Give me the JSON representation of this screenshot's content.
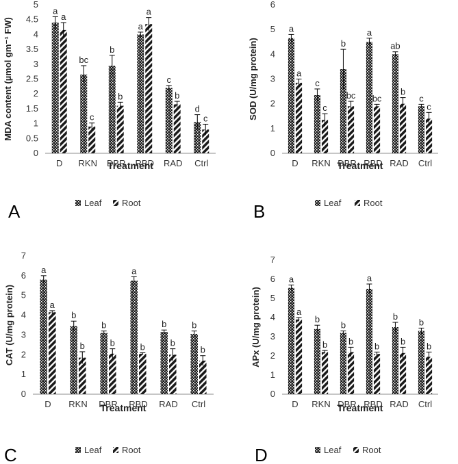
{
  "colors": {
    "bar": "#1a1a1a",
    "axis": "#8c8c8c",
    "text": "#222222"
  },
  "chart_data": [
    {
      "panel": "A",
      "type": "bar",
      "ylabel": "MDA content (µmol gm⁻¹ FW)",
      "xlabel": "Treatment",
      "ylim": [
        0,
        5
      ],
      "yticks": [
        "0",
        "0.5",
        "1",
        "1.5",
        "2",
        "2.5",
        "3",
        "3.5",
        "4",
        "4.5",
        "5"
      ],
      "categories": [
        "D",
        "RKN",
        "DBR",
        "RBD",
        "RAD",
        "Ctrl"
      ],
      "series": [
        {
          "name": "Leaf",
          "values": [
            4.4,
            2.65,
            2.95,
            4.0,
            2.2,
            1.05
          ],
          "errors": [
            0.2,
            0.3,
            0.35,
            0.08,
            0.08,
            0.25
          ],
          "letters": [
            "a",
            "bc",
            "b",
            "a",
            "c",
            "d"
          ]
        },
        {
          "name": "Root",
          "values": [
            4.15,
            0.9,
            1.6,
            4.35,
            1.65,
            0.8
          ],
          "errors": [
            0.25,
            0.12,
            0.12,
            0.22,
            0.1,
            0.18
          ],
          "letters": [
            "a",
            "c",
            "b",
            "a",
            "b",
            "c"
          ]
        }
      ]
    },
    {
      "panel": "B",
      "type": "bar",
      "ylabel": "SOD (U/mg protein)",
      "xlabel": "Treatment",
      "ylim": [
        0,
        6
      ],
      "yticks": [
        "0",
        "1",
        "2",
        "3",
        "4",
        "5",
        "6"
      ],
      "categories": [
        "D",
        "RKN",
        "DBR",
        "RBD",
        "RAD",
        "Ctrl"
      ],
      "series": [
        {
          "name": "Leaf",
          "values": [
            4.65,
            2.35,
            3.4,
            4.5,
            4.0,
            1.9
          ],
          "errors": [
            0.15,
            0.25,
            0.8,
            0.15,
            0.1,
            0.08
          ],
          "letters": [
            "a",
            "c",
            "b",
            "a",
            "ab",
            "c"
          ]
        },
        {
          "name": "Root",
          "values": [
            2.85,
            1.35,
            1.9,
            1.9,
            2.0,
            1.4
          ],
          "errors": [
            0.15,
            0.25,
            0.2,
            0.08,
            0.25,
            0.25
          ],
          "letters": [
            "a",
            "c",
            "bc",
            "bc",
            "b",
            "c"
          ]
        }
      ]
    },
    {
      "panel": "C",
      "type": "bar",
      "ylabel": "CAT (U/mg protein)",
      "xlabel": "Treatment",
      "ylim": [
        0,
        7
      ],
      "yticks": [
        "0",
        "1",
        "2",
        "3",
        "4",
        "5",
        "6",
        "7"
      ],
      "categories": [
        "D",
        "RKN",
        "DBR",
        "RBD",
        "RAD",
        "Ctrl"
      ],
      "series": [
        {
          "name": "Leaf",
          "values": [
            5.8,
            3.45,
            3.1,
            5.75,
            3.15,
            3.05
          ],
          "errors": [
            0.2,
            0.25,
            0.1,
            0.2,
            0.1,
            0.15
          ],
          "letters": [
            "a",
            "b",
            "b",
            "a",
            "b",
            "b"
          ]
        },
        {
          "name": "Root",
          "values": [
            4.15,
            1.85,
            2.05,
            2.05,
            2.0,
            1.7
          ],
          "errors": [
            0.08,
            0.3,
            0.25,
            0.05,
            0.3,
            0.25
          ],
          "letters": [
            "a",
            "b",
            "b",
            "b",
            "b",
            "b"
          ]
        }
      ]
    },
    {
      "panel": "D",
      "type": "bar",
      "ylabel": "APx (U/mg protein)",
      "xlabel": "Treatment",
      "ylim": [
        0,
        7
      ],
      "yticks": [
        "0",
        "1",
        "2",
        "3",
        "4",
        "5",
        "6",
        "7"
      ],
      "categories": [
        "D",
        "RKN",
        "DBR",
        "RBD",
        "RAD",
        "Ctrl"
      ],
      "series": [
        {
          "name": "Leaf",
          "values": [
            5.55,
            3.4,
            3.2,
            5.5,
            3.5,
            3.3
          ],
          "errors": [
            0.15,
            0.2,
            0.1,
            0.25,
            0.25,
            0.15
          ],
          "letters": [
            "a",
            "b",
            "b",
            "a",
            "b",
            "b"
          ]
        },
        {
          "name": "Root",
          "values": [
            3.9,
            2.2,
            2.2,
            2.1,
            2.15,
            1.95
          ],
          "errors": [
            0.1,
            0.08,
            0.25,
            0.1,
            0.3,
            0.25
          ],
          "letters": [
            "a",
            "b",
            "b",
            "b",
            "b",
            "b"
          ]
        }
      ]
    }
  ]
}
